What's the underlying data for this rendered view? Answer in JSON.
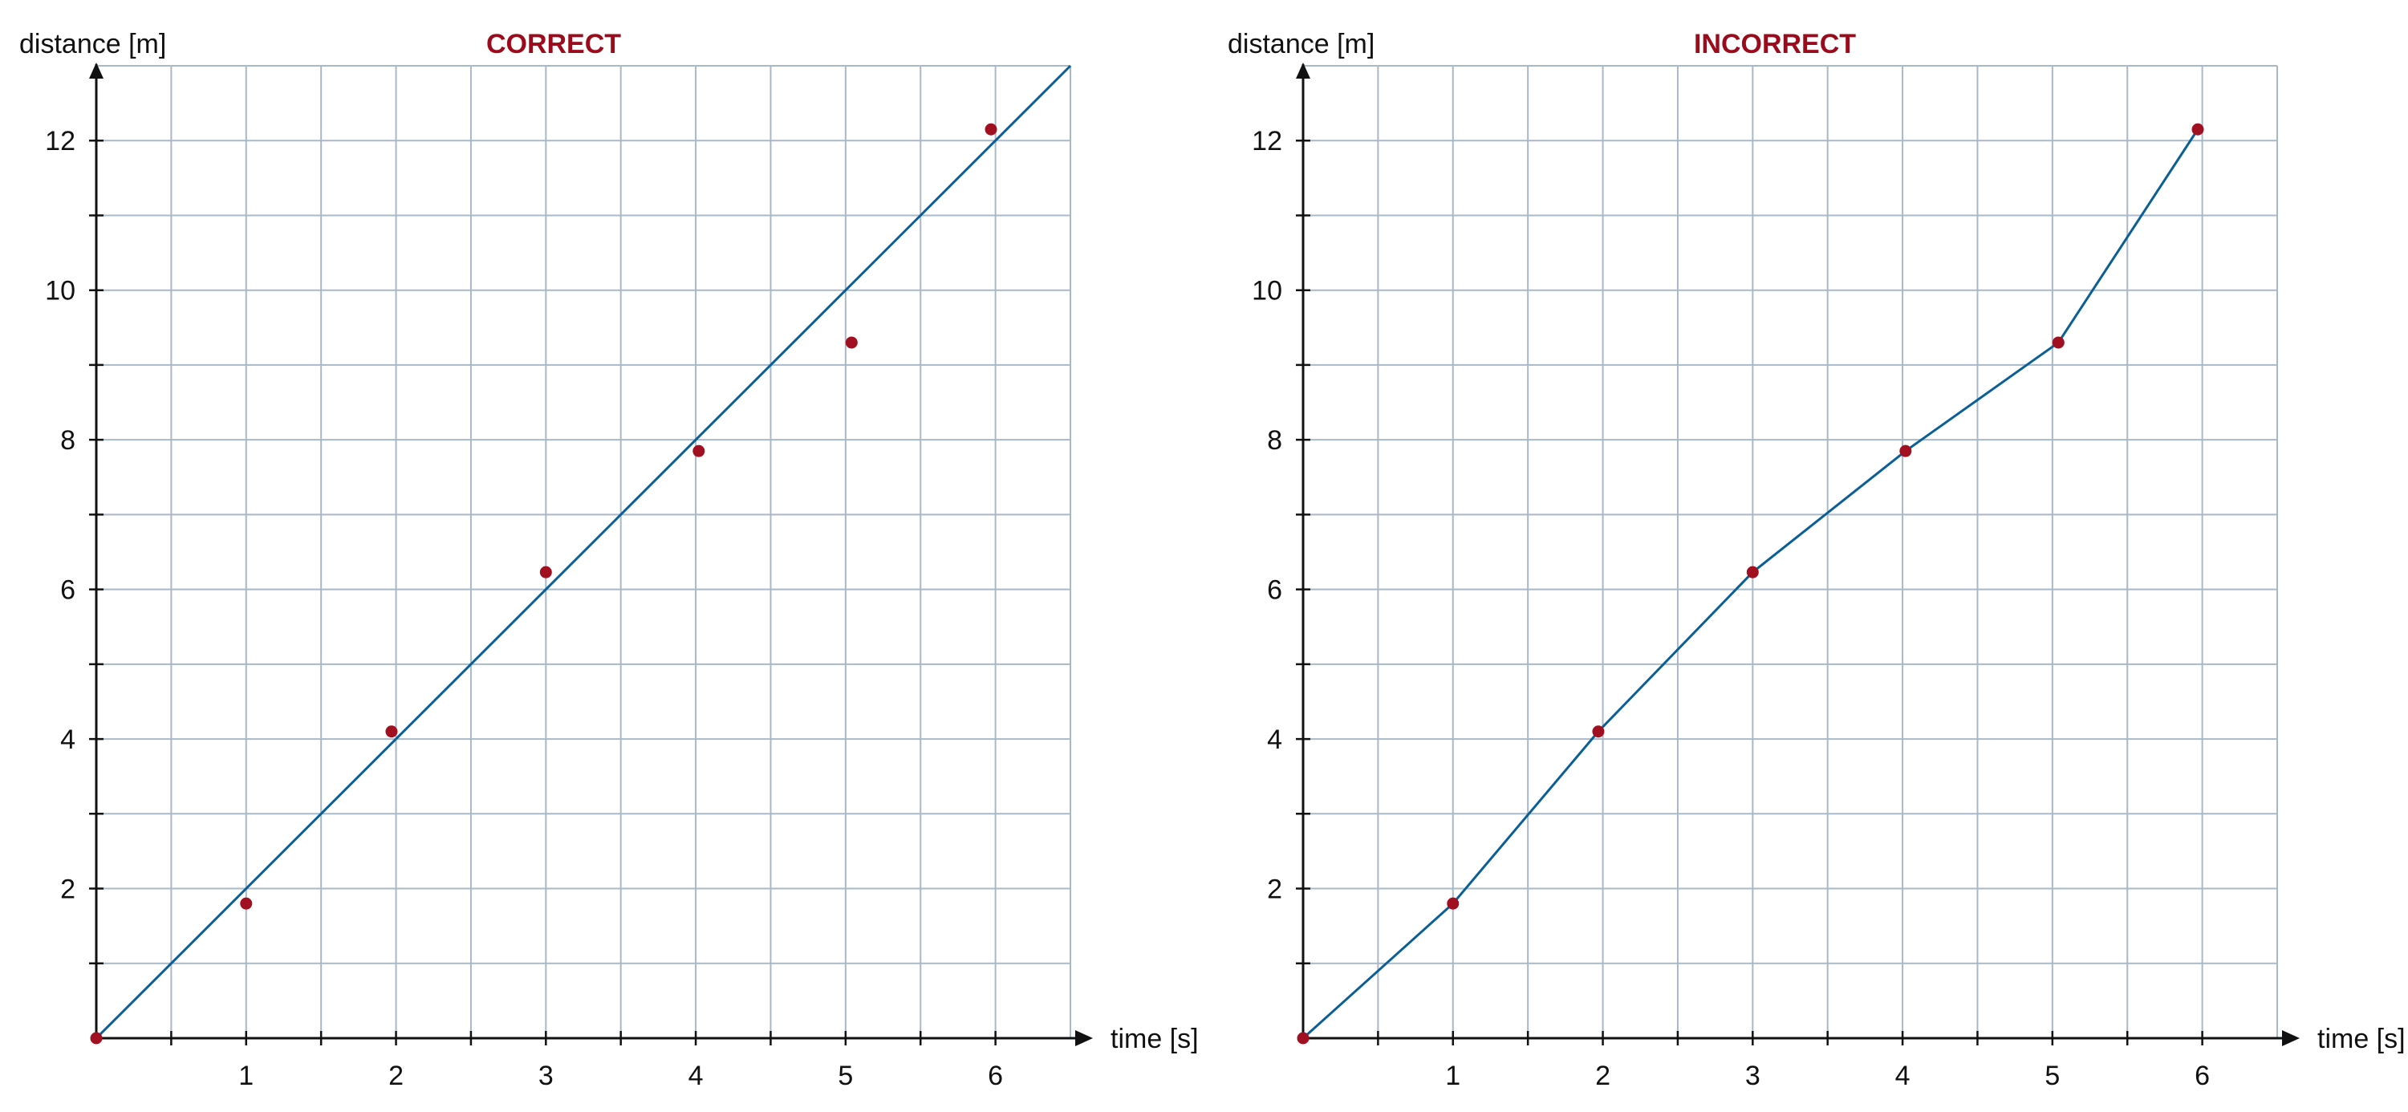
{
  "colors": {
    "title": "#9b0b1c",
    "point": "#a01020",
    "line": "#0a5f96",
    "grid": "#a9b8c8",
    "axis": "#111111"
  },
  "chart_data": [
    {
      "type": "scatter",
      "title": "CORRECT",
      "xlabel": "time [s]",
      "ylabel": "distance [m]",
      "xlim": [
        0,
        6.5
      ],
      "ylim": [
        0,
        13
      ],
      "x_ticks": [
        1,
        2,
        3,
        4,
        5,
        6
      ],
      "y_ticks": [
        2,
        4,
        6,
        8,
        10,
        12
      ],
      "grid": true,
      "points": [
        {
          "x": 0,
          "y": 0
        },
        {
          "x": 1,
          "y": 1.8
        },
        {
          "x": 1.97,
          "y": 4.1
        },
        {
          "x": 3,
          "y": 6.23
        },
        {
          "x": 4.02,
          "y": 7.85
        },
        {
          "x": 5.04,
          "y": 9.3
        },
        {
          "x": 5.97,
          "y": 12.15
        }
      ],
      "line": {
        "style": "best-fit",
        "from": {
          "x": 0,
          "y": 0
        },
        "to": {
          "x": 6.5,
          "y": 13
        }
      }
    },
    {
      "type": "line",
      "title": "INCORRECT",
      "xlabel": "time [s]",
      "ylabel": "distance [m]",
      "xlim": [
        0,
        6.5
      ],
      "ylim": [
        0,
        13
      ],
      "x_ticks": [
        1,
        2,
        3,
        4,
        5,
        6
      ],
      "y_ticks": [
        2,
        4,
        6,
        8,
        10,
        12
      ],
      "grid": true,
      "points": [
        {
          "x": 0,
          "y": 0
        },
        {
          "x": 1,
          "y": 1.8
        },
        {
          "x": 1.97,
          "y": 4.1
        },
        {
          "x": 3,
          "y": 6.23
        },
        {
          "x": 4.02,
          "y": 7.85
        },
        {
          "x": 5.04,
          "y": 9.3
        },
        {
          "x": 5.97,
          "y": 12.15
        }
      ],
      "line": {
        "style": "connect-the-dots"
      }
    }
  ]
}
